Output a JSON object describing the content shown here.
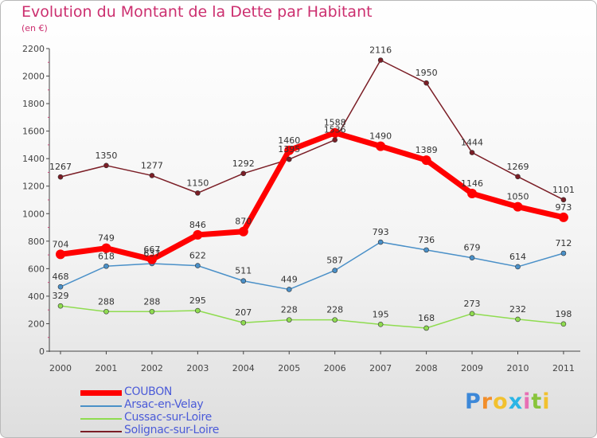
{
  "chart_data": {
    "type": "line",
    "title": "Evolution du Montant de la Dette par Habitant",
    "subtitle": "(en €)",
    "x": [
      "2000",
      "2001",
      "2002",
      "2003",
      "2004",
      "2005",
      "2006",
      "2007",
      "2008",
      "2009",
      "2010",
      "2011"
    ],
    "ylim": [
      0,
      2200
    ],
    "yticks": [
      0,
      200,
      400,
      600,
      800,
      1000,
      1200,
      1400,
      1600,
      1800,
      2000,
      2200
    ],
    "grid": false,
    "legend_position": "bottom-left",
    "series": [
      {
        "name": "Solignac-sur-Loire",
        "color": "#7b1e26",
        "values": [
          1267,
          1350,
          1277,
          1150,
          1292,
          1395,
          1536,
          2116,
          1950,
          1444,
          1269,
          1101
        ]
      },
      {
        "name": "Arsac-en-Velay",
        "color": "#4a90c8",
        "values": [
          468,
          618,
          637,
          622,
          511,
          449,
          587,
          793,
          736,
          679,
          614,
          712
        ]
      },
      {
        "name": "Cussac-sur-Loire",
        "color": "#8fdc50",
        "values": [
          329,
          288,
          288,
          295,
          207,
          228,
          228,
          195,
          168,
          273,
          232,
          198
        ]
      },
      {
        "name": "COUBON",
        "color": "#ff0000",
        "values": [
          704,
          749,
          667,
          846,
          870,
          1460,
          1588,
          1490,
          1389,
          1146,
          1050,
          973
        ]
      }
    ]
  },
  "legend": [
    {
      "name": "COUBON",
      "color": "#ff0000",
      "text_color": "#4b5bd8"
    },
    {
      "name": "Arsac-en-Velay",
      "color": "#4a90c8",
      "text_color": "#4b5bd8"
    },
    {
      "name": "Cussac-sur-Loire",
      "color": "#8fdc50",
      "text_color": "#4b5bd8"
    },
    {
      "name": "Solignac-sur-Loire",
      "color": "#7b1e26",
      "text_color": "#4b5bd8"
    }
  ],
  "brand": {
    "letters": [
      "P",
      "r",
      "o",
      "x",
      "i",
      "t",
      "i"
    ],
    "colors": [
      "#3d88d8",
      "#f28e2b",
      "#f2c12e",
      "#2bb5e6",
      "#e86fb4",
      "#88c43b",
      "#f2c12e"
    ]
  }
}
